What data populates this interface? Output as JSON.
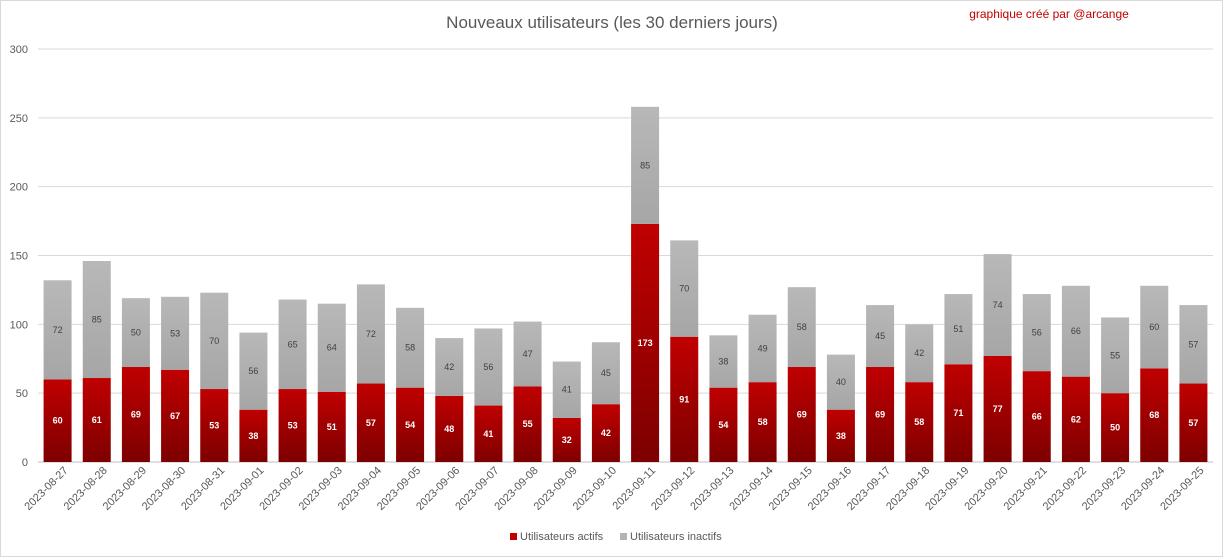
{
  "chart_data": {
    "type": "bar",
    "stacked": true,
    "title": "Nouveaux utilisateurs  (les 30 derniers  jours)",
    "credit": "graphique créé par @arcange",
    "categories": [
      "2023-08-27",
      "2023-08-28",
      "2023-08-29",
      "2023-08-30",
      "2023-08-31",
      "2023-09-01",
      "2023-09-02",
      "2023-09-03",
      "2023-09-04",
      "2023-09-05",
      "2023-09-06",
      "2023-09-07",
      "2023-09-08",
      "2023-09-09",
      "2023-09-10",
      "2023-09-11",
      "2023-09-12",
      "2023-09-13",
      "2023-09-14",
      "2023-09-15",
      "2023-09-16",
      "2023-09-17",
      "2023-09-18",
      "2023-09-19",
      "2023-09-20",
      "2023-09-21",
      "2023-09-22",
      "2023-09-23",
      "2023-09-24",
      "2023-09-25"
    ],
    "series": [
      {
        "name": "Utilisateurs actifs",
        "color": "#c00000",
        "values": [
          60,
          61,
          69,
          67,
          53,
          38,
          53,
          51,
          57,
          54,
          48,
          41,
          55,
          32,
          42,
          173,
          91,
          54,
          58,
          69,
          38,
          69,
          58,
          71,
          77,
          66,
          62,
          50,
          68,
          57
        ]
      },
      {
        "name": "Utilisateurs inactifs",
        "color": "#b4b4b4",
        "values": [
          72,
          85,
          50,
          53,
          70,
          56,
          65,
          64,
          72,
          58,
          42,
          56,
          47,
          41,
          45,
          85,
          70,
          38,
          49,
          58,
          40,
          45,
          42,
          51,
          74,
          56,
          66,
          55,
          60,
          57
        ]
      }
    ],
    "ylim": [
      0,
      300
    ],
    "yticks": [
      0,
      50,
      100,
      150,
      200,
      250,
      300
    ],
    "grid": true,
    "legend": "bottom"
  }
}
